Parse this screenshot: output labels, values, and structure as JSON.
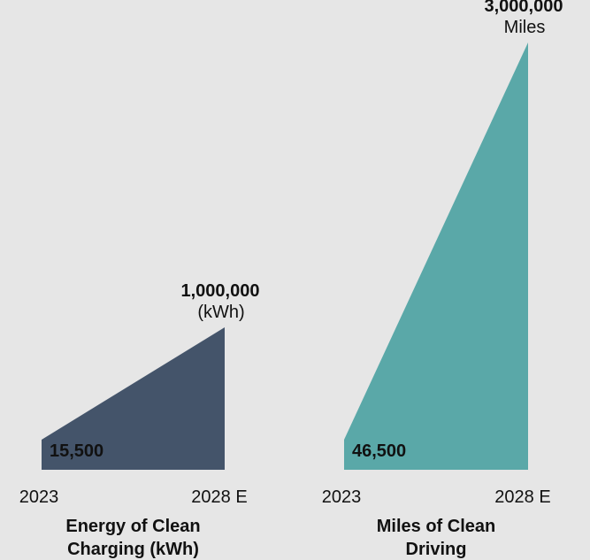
{
  "chart_data": [
    {
      "type": "area",
      "title": "Energy of Clean Charging (kWh)",
      "title_lines": [
        "Energy of Clean",
        "Charging (kWh)"
      ],
      "categories": [
        "2023",
        "2028 E"
      ],
      "values": [
        15500,
        1000000
      ],
      "start_label": "15,500",
      "end_value_label": "1,000,000",
      "end_unit_label": "(kWh)",
      "color": "#44546a"
    },
    {
      "type": "area",
      "title": "Miles of Clean Driving",
      "title_lines": [
        "Miles of Clean",
        "Driving"
      ],
      "categories": [
        "2023",
        "2028 E"
      ],
      "values": [
        46500,
        3000000
      ],
      "start_label": "46,500",
      "end_value_label": "3,000,000",
      "end_unit_label": "Miles",
      "color": "#5aa8a8"
    }
  ],
  "colors": {
    "background": "#e6e6e6",
    "text": "#111111",
    "inner_label": "#ffffff"
  }
}
